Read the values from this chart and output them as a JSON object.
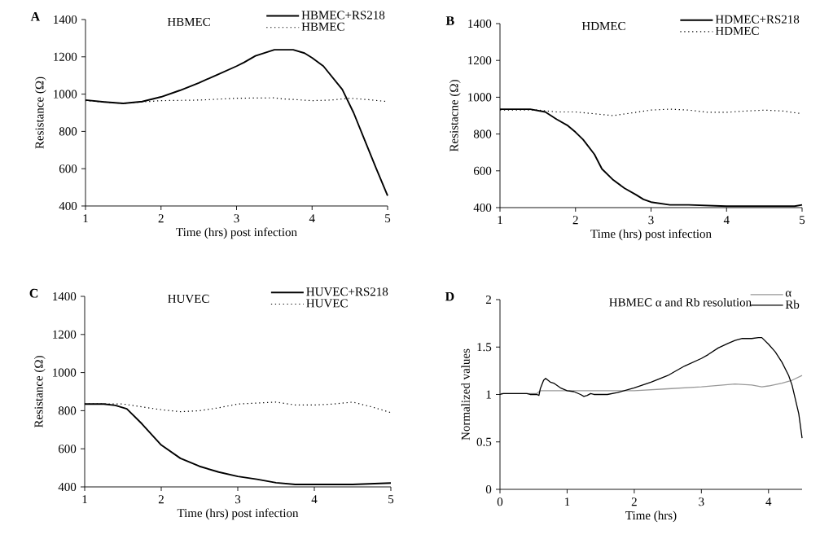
{
  "chart_data": [
    {
      "type": "line",
      "title": "HBMEC",
      "xlabel": "Time (hrs) post infection",
      "ylabel": "Resistance (Ω)",
      "annotations": [
        "A"
      ],
      "xlim": [
        1,
        5
      ],
      "ylim": [
        400,
        1400
      ],
      "xticks": [
        1,
        2,
        3,
        4,
        5
      ],
      "yticks": [
        400,
        600,
        800,
        1000,
        1200,
        1400
      ],
      "legend": "top right",
      "series": [
        {
          "name": "HBMEC+RS218",
          "color": "#000000",
          "line_style": "solid",
          "x": [
            1,
            1.25,
            1.5,
            1.75,
            2,
            2.25,
            2.5,
            2.75,
            3,
            3.1,
            3.25,
            3.5,
            3.75,
            3.9,
            4,
            4.15,
            4.4,
            4.55,
            4.7,
            4.85,
            5
          ],
          "values": [
            968,
            958,
            950,
            960,
            985,
            1020,
            1060,
            1105,
            1150,
            1170,
            1205,
            1238,
            1238,
            1220,
            1195,
            1150,
            1025,
            900,
            750,
            600,
            455
          ]
        },
        {
          "name": "HBMEC",
          "color": "#000000",
          "line_style": "dotted",
          "x": [
            1,
            1.5,
            1.75,
            2,
            2.5,
            3,
            3.5,
            3.6,
            3.8,
            4,
            4.25,
            4.5,
            4.75,
            5
          ],
          "values": [
            965,
            950,
            958,
            965,
            968,
            978,
            980,
            975,
            970,
            965,
            968,
            978,
            970,
            960
          ]
        }
      ]
    },
    {
      "type": "line",
      "title": "HDMEC",
      "xlabel": "Time (hrs) post infection",
      "ylabel": "Resistacne (Ω)",
      "annotations": [
        "B"
      ],
      "xlim": [
        1,
        5
      ],
      "ylim": [
        400,
        1400
      ],
      "xticks": [
        1,
        2,
        3,
        4,
        5
      ],
      "yticks": [
        400,
        600,
        800,
        1000,
        1200,
        1400
      ],
      "legend": "top right",
      "series": [
        {
          "name": "HDMEC+RS218",
          "color": "#000000",
          "line_style": "solid",
          "x": [
            1,
            1.25,
            1.4,
            1.6,
            1.75,
            1.9,
            2,
            2.1,
            2.25,
            2.35,
            2.5,
            2.65,
            2.8,
            2.9,
            3,
            3.25,
            3.5,
            4,
            4.5,
            4.9,
            5
          ],
          "values": [
            935,
            935,
            935,
            920,
            880,
            845,
            810,
            770,
            690,
            610,
            550,
            505,
            470,
            445,
            430,
            415,
            415,
            408,
            408,
            408,
            415
          ]
        },
        {
          "name": "HDMEC",
          "color": "#000000",
          "line_style": "dotted",
          "x": [
            1,
            1.5,
            1.75,
            2,
            2.25,
            2.5,
            2.75,
            3,
            3.25,
            3.5,
            3.75,
            4,
            4.25,
            4.5,
            4.75,
            5
          ],
          "values": [
            930,
            930,
            920,
            920,
            910,
            900,
            915,
            930,
            935,
            930,
            918,
            918,
            925,
            930,
            925,
            910
          ]
        }
      ]
    },
    {
      "type": "line",
      "title": "HUVEC",
      "xlabel": "Time (hrs) post infection",
      "ylabel": "Resistance (Ω)",
      "annotations": [
        "C"
      ],
      "xlim": [
        1,
        5
      ],
      "ylim": [
        400,
        1400
      ],
      "xticks": [
        1,
        2,
        3,
        4,
        5
      ],
      "yticks": [
        400,
        600,
        800,
        1000,
        1200,
        1400
      ],
      "legend": "top right",
      "series": [
        {
          "name": "HUVEC+RS218",
          "color": "#000000",
          "line_style": "solid",
          "x": [
            1,
            1.25,
            1.4,
            1.55,
            1.75,
            2,
            2.25,
            2.5,
            2.75,
            3,
            3.25,
            3.5,
            3.75,
            4,
            4.5,
            5
          ],
          "values": [
            835,
            835,
            828,
            810,
            730,
            620,
            550,
            508,
            478,
            455,
            440,
            422,
            413,
            413,
            413,
            420
          ]
        },
        {
          "name": "HUVEC",
          "color": "#000000",
          "line_style": "dotted",
          "x": [
            1,
            1.5,
            1.75,
            2,
            2.25,
            2.5,
            2.75,
            3,
            3.25,
            3.5,
            3.75,
            4,
            4.25,
            4.5,
            4.75,
            5
          ],
          "values": [
            835,
            835,
            820,
            805,
            795,
            800,
            815,
            835,
            840,
            845,
            830,
            830,
            835,
            845,
            820,
            790
          ]
        }
      ]
    },
    {
      "type": "line",
      "title": "HBMEC α and Rb resolution",
      "xlabel": "Time (hrs)",
      "ylabel": "Normalized values",
      "annotations": [
        "D"
      ],
      "xlim": [
        0,
        4.5
      ],
      "ylim": [
        0,
        2
      ],
      "xticks": [
        0,
        1,
        2,
        3,
        4
      ],
      "yticks": [
        0,
        0.5,
        1,
        1.5,
        2
      ],
      "legend": "top right",
      "series": [
        {
          "name": "α",
          "color": "#999999",
          "line_style": "solid",
          "x": [
            0,
            0.55,
            0.6,
            1,
            1.5,
            2,
            2.5,
            3,
            3.5,
            3.75,
            3.9,
            4,
            4.2,
            4.35,
            4.5
          ],
          "values": [
            1.01,
            1.01,
            1.04,
            1.04,
            1.04,
            1.04,
            1.06,
            1.08,
            1.11,
            1.1,
            1.08,
            1.09,
            1.12,
            1.15,
            1.2
          ]
        },
        {
          "name": "Rb",
          "color": "#000000",
          "line_style": "solid",
          "x": [
            0,
            0.05,
            0.4,
            0.45,
            0.55,
            0.58,
            0.6,
            0.65,
            0.68,
            0.75,
            0.8,
            0.9,
            1,
            1.1,
            1.2,
            1.25,
            1.3,
            1.35,
            1.4,
            1.6,
            1.75,
            2,
            2.25,
            2.5,
            2.6,
            2.75,
            3,
            3.1,
            3.25,
            3.4,
            3.5,
            3.6,
            3.75,
            3.85,
            3.9,
            4,
            4.1,
            4.2,
            4.3,
            4.35,
            4.4,
            4.45,
            4.5
          ],
          "values": [
            1.0,
            1.01,
            1.01,
            1.0,
            1.0,
            0.99,
            1.06,
            1.15,
            1.17,
            1.13,
            1.12,
            1.07,
            1.04,
            1.03,
            1.0,
            0.98,
            0.99,
            1.01,
            1.0,
            1.0,
            1.02,
            1.07,
            1.13,
            1.2,
            1.24,
            1.3,
            1.38,
            1.42,
            1.49,
            1.54,
            1.57,
            1.59,
            1.59,
            1.6,
            1.6,
            1.53,
            1.45,
            1.34,
            1.2,
            1.1,
            0.95,
            0.8,
            0.54
          ]
        }
      ]
    }
  ]
}
